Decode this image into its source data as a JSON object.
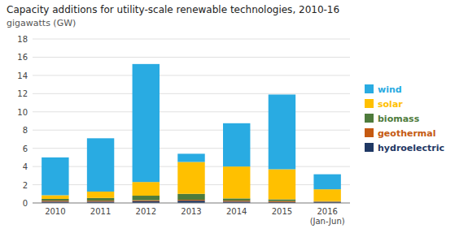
{
  "chart_data": {
    "type": "bar",
    "stacked": true,
    "title": "Capacity additions for utility-scale renewable technologies, 2010-16",
    "subtitle": "gigawatts (GW)",
    "categories": [
      "2010",
      "2011",
      "2012",
      "2013",
      "2014",
      "2015",
      "2016\n(Jan-Jun)"
    ],
    "series": [
      {
        "name": "hydroelectric",
        "color": "#1f3864",
        "values": [
          0.15,
          0.15,
          0.2,
          0.25,
          0.15,
          0.1,
          0.1
        ]
      },
      {
        "name": "geothermal",
        "color": "#c55a11",
        "values": [
          0.1,
          0.1,
          0.1,
          0.1,
          0.1,
          0.1,
          0.05
        ]
      },
      {
        "name": "biomass",
        "color": "#4e7b3c",
        "values": [
          0.2,
          0.3,
          0.5,
          0.65,
          0.25,
          0.2,
          0.05
        ]
      },
      {
        "name": "solar",
        "color": "#ffc000",
        "values": [
          0.4,
          0.7,
          1.5,
          3.5,
          3.5,
          3.3,
          1.3
        ]
      },
      {
        "name": "wind",
        "color": "#29abe2",
        "values": [
          4.15,
          5.85,
          12.95,
          0.9,
          4.75,
          8.2,
          1.65
        ]
      }
    ],
    "ylim": [
      0,
      18
    ],
    "yticks": [
      0,
      2,
      4,
      6,
      8,
      10,
      12,
      14,
      16,
      18
    ],
    "grid": true,
    "legend": "right"
  }
}
